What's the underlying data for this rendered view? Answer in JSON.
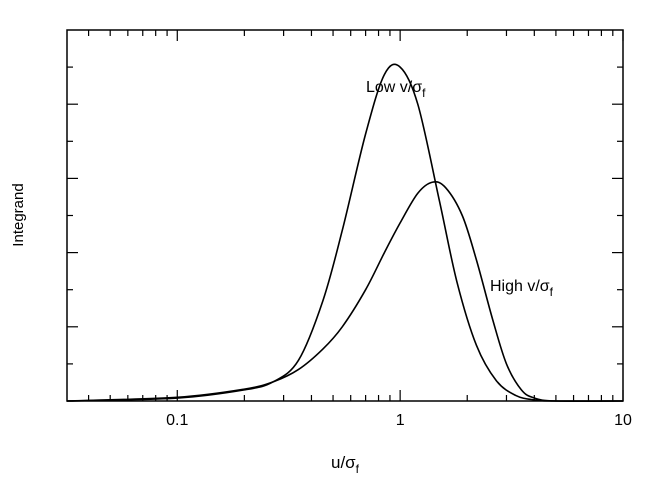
{
  "chart_data": {
    "type": "line",
    "xscale": "log",
    "xlim": [
      0.032,
      10
    ],
    "ylim": [
      0,
      1
    ],
    "x_ticks": [
      {
        "value": 0.1,
        "label": "0.1"
      },
      {
        "value": 1,
        "label": "1"
      },
      {
        "value": 10,
        "label": "10"
      }
    ],
    "xlabel": {
      "main": "u/σ",
      "sub": "f"
    },
    "ylabel": "Integrand",
    "y_tick_labels": false,
    "series": [
      {
        "name": "Low v/σ_f",
        "label_main": "Low v/σ",
        "label_sub": "f",
        "x": [
          0.032,
          0.1,
          0.2,
          0.27,
          0.35,
          0.45,
          0.55,
          0.7,
          0.85,
          1.0,
          1.2,
          1.5,
          1.8,
          2.2,
          2.7,
          3.3,
          4.0,
          5.0,
          10
        ],
        "y": [
          0.0,
          0.008,
          0.03,
          0.052,
          0.11,
          0.27,
          0.46,
          0.72,
          0.88,
          0.9,
          0.8,
          0.54,
          0.32,
          0.15,
          0.055,
          0.015,
          0.003,
          0.0,
          0.0
        ]
      },
      {
        "name": "High v/σ_f",
        "label_main": "High v/σ",
        "label_sub": "f",
        "x": [
          0.032,
          0.1,
          0.2,
          0.27,
          0.35,
          0.45,
          0.55,
          0.7,
          0.85,
          1.0,
          1.2,
          1.4,
          1.6,
          1.9,
          2.2,
          2.6,
          3.0,
          3.5,
          4.0,
          5.0,
          10
        ],
        "y": [
          0.0,
          0.01,
          0.032,
          0.052,
          0.085,
          0.14,
          0.2,
          0.3,
          0.4,
          0.48,
          0.56,
          0.59,
          0.575,
          0.5,
          0.38,
          0.22,
          0.1,
          0.03,
          0.008,
          0.0,
          0.0
        ]
      }
    ]
  }
}
